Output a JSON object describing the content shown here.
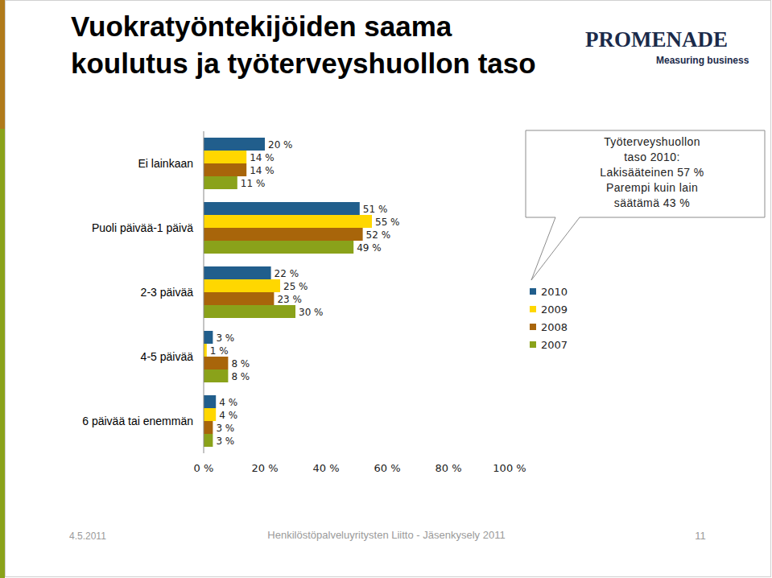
{
  "chart_data": {
    "type": "bar",
    "orientation": "horizontal",
    "title": "Vuokratyöntekijöiden saama koulutus ja työterveyshuollon taso",
    "categories": [
      "Ei lainkaan",
      "Puoli päivää-1 päivä",
      "2-3 päivää",
      "4-5 päivää",
      "6 päivää tai enemmän"
    ],
    "series": [
      {
        "name": "2010",
        "color": "#215e8c",
        "values": [
          20,
          51,
          22,
          3,
          4
        ],
        "value_labels": [
          "20 %",
          "51 %",
          "22 %",
          "3 %",
          "4 %"
        ]
      },
      {
        "name": "2009",
        "color": "#ffd700",
        "values": [
          14,
          55,
          25,
          1,
          4
        ],
        "value_labels": [
          "14 %",
          "55 %",
          "25 %",
          "1 %",
          "4 %"
        ]
      },
      {
        "name": "2008",
        "color": "#a8650a",
        "values": [
          14,
          52,
          23,
          8,
          3
        ],
        "value_labels": [
          "14 %",
          "52 %",
          "23 %",
          "8 %",
          "3 %"
        ]
      },
      {
        "name": "2007",
        "color": "#8aa21a",
        "values": [
          11,
          49,
          30,
          8,
          3
        ],
        "value_labels": [
          "11 %",
          "49 %",
          "30 %",
          "8 %",
          "3 %"
        ]
      }
    ],
    "xlim": [
      0,
      100
    ],
    "xticks": [
      {
        "value": 0,
        "label": "0 %"
      },
      {
        "value": 20,
        "label": "20 %"
      },
      {
        "value": 40,
        "label": "40 %"
      },
      {
        "value": 60,
        "label": "60 %"
      },
      {
        "value": 80,
        "label": "80 %"
      },
      {
        "value": 100,
        "label": "100 %"
      }
    ],
    "grid": false,
    "legend": "right",
    "data_labels": true,
    "annotation": [
      "Työterveyshuollon",
      "taso 2010:",
      "Lakisääteinen 57 %",
      "Parempi kuin lain",
      "säätämä 43 %"
    ]
  },
  "page": {
    "logo": "PROMENADE",
    "logo_tagline": "Measuring business",
    "footer_date": "4.5.2011",
    "footer_text": "Henkilöstöpalveluyritysten Liitto - Jäsenkysely 2011",
    "page_number": "11"
  }
}
